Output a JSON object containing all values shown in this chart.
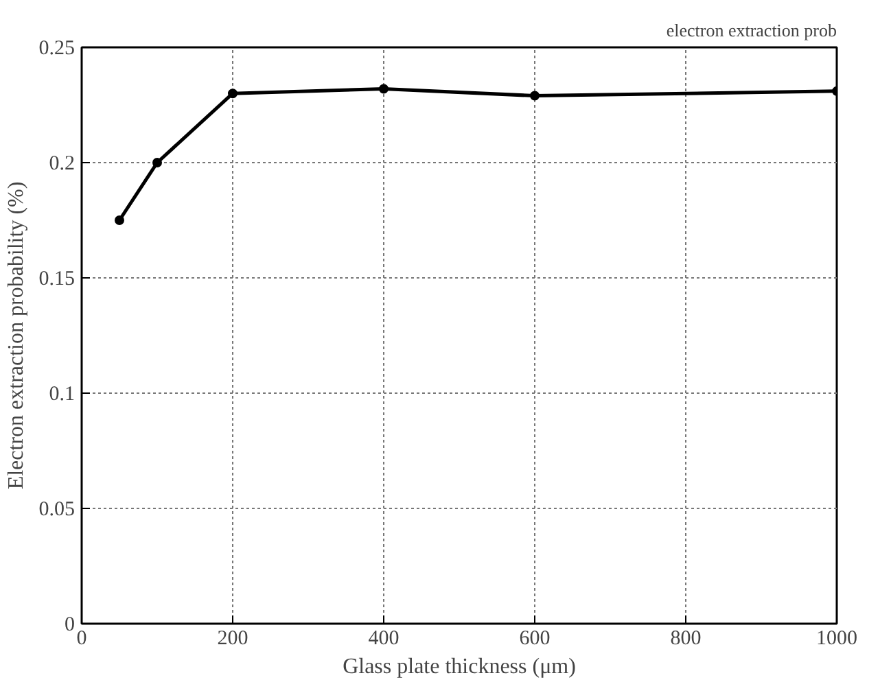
{
  "chart_data": {
    "type": "line",
    "xlabel": "Glass plate thickness (μm)",
    "ylabel": "Electron extraction probability (%)",
    "annotations": [
      "electron extraction prob"
    ],
    "x": [
      50,
      100,
      200,
      400,
      600,
      1000
    ],
    "series": [
      {
        "color": "#000000",
        "values": [
          0.175,
          0.2,
          0.23,
          0.232,
          0.229,
          0.231
        ]
      }
    ],
    "xlim": [
      0,
      1000
    ],
    "xticks": [
      0,
      200,
      400,
      600,
      800,
      1000
    ],
    "ylim": [
      0,
      0.25
    ],
    "yticks": [
      0,
      0.05,
      0.1,
      0.15,
      0.2,
      0.25
    ],
    "grid": true,
    "marker": "circle",
    "line_style": "solid"
  }
}
